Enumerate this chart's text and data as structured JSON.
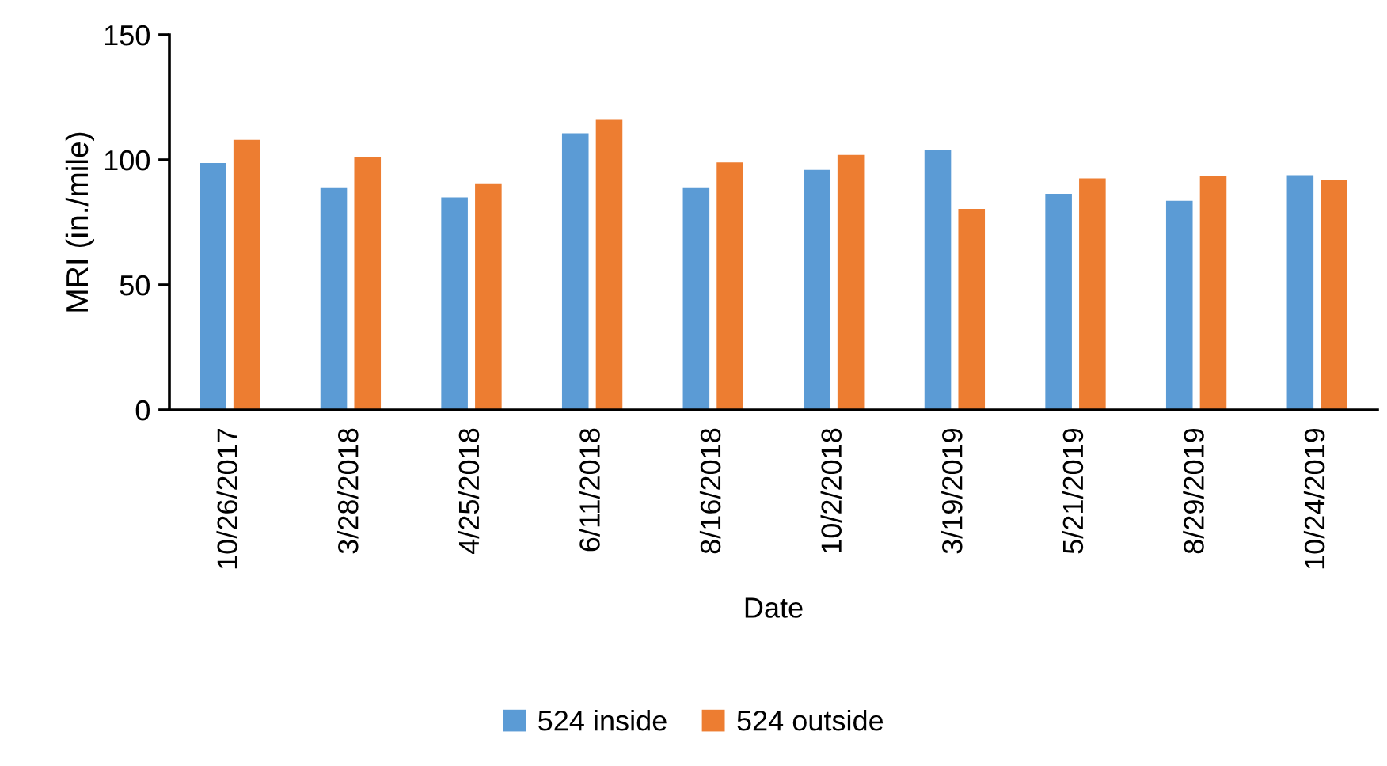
{
  "chart_data": {
    "type": "bar",
    "xlabel": "Date",
    "ylabel": "MRI (in./mile)",
    "categories": [
      "10/26/2017",
      "3/28/2018",
      "4/25/2018",
      "6/11/2018",
      "8/16/2018",
      "10/2/2018",
      "3/19/2019",
      "5/21/2019",
      "8/29/2019",
      "10/24/2019"
    ],
    "series": [
      {
        "name": "524 inside",
        "color": "#5b9bd5",
        "values": [
          98.7,
          89,
          85,
          110.6,
          89,
          96,
          104,
          86.4,
          83.6,
          93.8
        ]
      },
      {
        "name": "524 outside",
        "color": "#ed7d31",
        "values": [
          108,
          101,
          90.6,
          116,
          99,
          102,
          80.4,
          92.6,
          93.4,
          92.1
        ]
      }
    ],
    "ylim": [
      0,
      150
    ],
    "yticks": [
      0,
      50,
      100,
      150
    ],
    "grid": false,
    "legend": "bottom"
  }
}
